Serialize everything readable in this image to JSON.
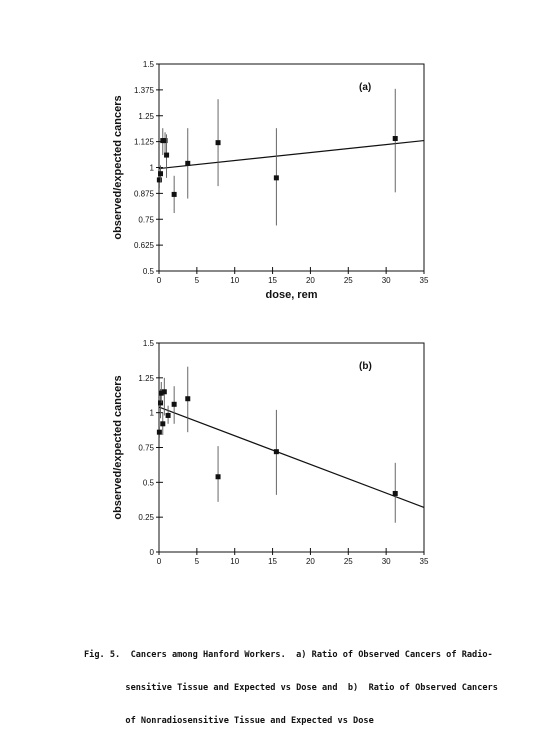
{
  "chart_data": [
    {
      "type": "scatter",
      "panel_label": "(a)",
      "xlabel": "dose, rem",
      "ylabel": "observed/expected cancers",
      "xlim": [
        0,
        35
      ],
      "ylim": [
        0.5,
        1.5
      ],
      "xticks": [
        0,
        5,
        10,
        15,
        20,
        25,
        30,
        35
      ],
      "yticks": [
        0.5,
        0.625,
        0.75,
        0.875,
        1,
        1.125,
        1.25,
        1.375,
        1.5
      ],
      "ytick_labels": [
        "0.5",
        "0.625",
        "0.75",
        "0.875",
        "1",
        "1.125",
        "1.25",
        "1.375",
        "1.5"
      ],
      "points": [
        {
          "x": 0.05,
          "y": 0.94,
          "low": 0.9,
          "high": 0.98
        },
        {
          "x": 0.2,
          "y": 0.97,
          "low": 0.93,
          "high": 1.01
        },
        {
          "x": 0.5,
          "y": 1.13,
          "low": 1.06,
          "high": 1.19
        },
        {
          "x": 0.8,
          "y": 1.13,
          "low": 1.05,
          "high": 1.17
        },
        {
          "x": 1.0,
          "y": 1.06,
          "low": 0.95,
          "high": 1.16
        },
        {
          "x": 2.0,
          "y": 0.87,
          "low": 0.78,
          "high": 0.96
        },
        {
          "x": 3.8,
          "y": 1.02,
          "low": 0.85,
          "high": 1.19
        },
        {
          "x": 7.8,
          "y": 1.12,
          "low": 0.91,
          "high": 1.33
        },
        {
          "x": 15.5,
          "y": 0.95,
          "low": 0.72,
          "high": 1.19
        },
        {
          "x": 31.2,
          "y": 1.14,
          "low": 0.88,
          "high": 1.38
        }
      ],
      "trend": {
        "x": [
          0,
          35
        ],
        "y": [
          0.995,
          1.13
        ]
      }
    },
    {
      "type": "scatter",
      "panel_label": "(b)",
      "xlabel": "dose, rem",
      "ylabel": "observed/expected cancers",
      "xlim": [
        0,
        35
      ],
      "ylim": [
        0,
        1.5
      ],
      "xticks": [
        0,
        5,
        10,
        15,
        20,
        25,
        30,
        35
      ],
      "yticks": [
        0,
        0.25,
        0.5,
        0.75,
        1,
        1.25,
        1.5
      ],
      "ytick_labels": [
        "0",
        "0.25",
        "0.5",
        "0.75",
        "1",
        "1.25",
        "1.5"
      ],
      "points": [
        {
          "x": 0.05,
          "y": 0.86,
          "low": 0.82,
          "high": 0.9
        },
        {
          "x": 0.2,
          "y": 1.07,
          "low": 0.96,
          "high": 1.17
        },
        {
          "x": 0.3,
          "y": 1.14,
          "low": 1.07,
          "high": 1.22
        },
        {
          "x": 0.5,
          "y": 0.92,
          "low": 0.84,
          "high": 1.0
        },
        {
          "x": 0.7,
          "y": 1.15,
          "low": 0.98,
          "high": 1.25
        },
        {
          "x": 1.2,
          "y": 0.98,
          "low": 0.92,
          "high": 1.05
        },
        {
          "x": 2.0,
          "y": 1.06,
          "low": 0.92,
          "high": 1.19
        },
        {
          "x": 3.8,
          "y": 1.1,
          "low": 0.86,
          "high": 1.33
        },
        {
          "x": 7.8,
          "y": 0.54,
          "low": 0.36,
          "high": 0.76
        },
        {
          "x": 15.5,
          "y": 0.72,
          "low": 0.41,
          "high": 1.02
        },
        {
          "x": 31.2,
          "y": 0.42,
          "low": 0.21,
          "high": 0.64
        }
      ],
      "trend": {
        "x": [
          0,
          35
        ],
        "y": [
          1.04,
          0.32
        ]
      }
    }
  ],
  "caption": {
    "line1": "Fig. 5.  Cancers among Hanford Workers.  a) Ratio of Observed Cancers of Radio-",
    "line2": "        sensitive Tissue and Expected vs Dose and  b)  Ratio of Observed Cancers",
    "line3": "        of Nonradiosensitive Tissue and Expected vs Dose"
  }
}
